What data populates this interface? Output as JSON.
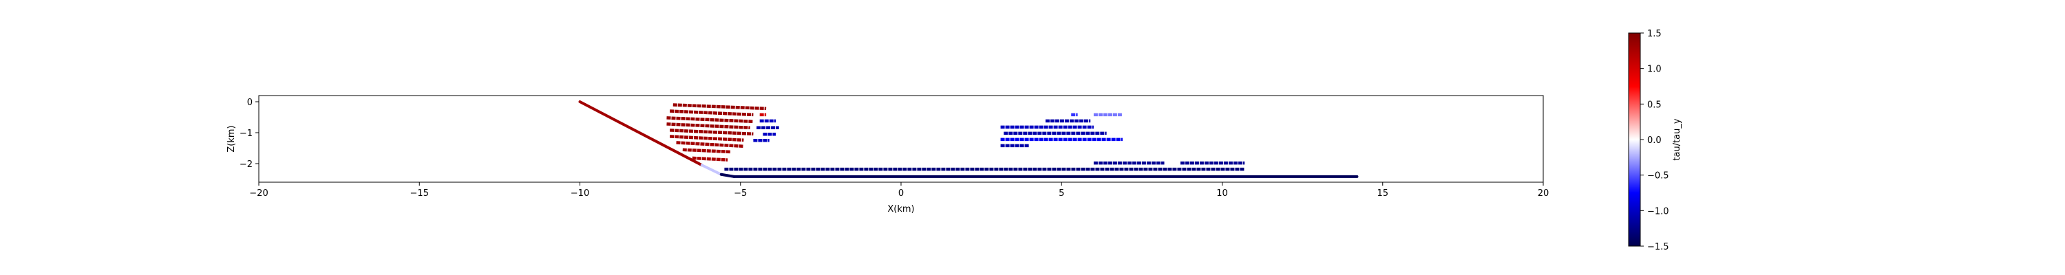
{
  "chart_data": {
    "type": "scatter",
    "xlabel": "X(km)",
    "ylabel": "Z(km)",
    "xlim": [
      -20,
      20
    ],
    "ylim": [
      -2.6,
      0.2
    ],
    "xticks": [
      -20,
      -15,
      -10,
      -5,
      0,
      5,
      10,
      15,
      20
    ],
    "xtick_labels": [
      "−20",
      "−15",
      "−10",
      "−5",
      "0",
      "5",
      "10",
      "15",
      "20"
    ],
    "yticks": [
      0,
      -1,
      -2
    ],
    "ytick_labels": [
      "0",
      "−1",
      "−2"
    ],
    "grid": false,
    "colorbar": {
      "label": "tau/tau_y",
      "range": [
        -1.5,
        1.5
      ],
      "colormap": "seismic",
      "ticks": [
        1.5,
        1.0,
        0.5,
        0.0,
        -0.5,
        -1.0,
        -1.5
      ],
      "tick_labels": [
        "1.5",
        "1.0",
        "0.5",
        "0.0",
        "−0.5",
        "−1.0",
        "−1.5"
      ]
    },
    "series": [
      {
        "kind": "fault",
        "x": [
          -10,
          -6.2,
          -5.6,
          -5.2,
          14.2
        ],
        "y": [
          0,
          -2.05,
          -2.35,
          -2.42,
          -2.42
        ],
        "stress": 1.3,
        "stress_end": -1.45
      },
      {
        "x": [
          -7.1,
          -4.2
        ],
        "y": [
          -0.1,
          -0.22
        ],
        "stress": 1.35
      },
      {
        "x": [
          -7.2,
          -4.6
        ],
        "y": [
          -0.3,
          -0.42
        ],
        "stress": 1.35
      },
      {
        "x": [
          -7.3,
          -4.6
        ],
        "y": [
          -0.52,
          -0.64
        ],
        "stress": 1.35
      },
      {
        "x": [
          -7.3,
          -4.7
        ],
        "y": [
          -0.72,
          -0.84
        ],
        "stress": 1.35
      },
      {
        "x": [
          -7.2,
          -4.6
        ],
        "y": [
          -0.92,
          -1.04
        ],
        "stress": 1.35
      },
      {
        "x": [
          -7.2,
          -4.9
        ],
        "y": [
          -1.12,
          -1.24
        ],
        "stress": 1.3
      },
      {
        "x": [
          -7.0,
          -4.9
        ],
        "y": [
          -1.32,
          -1.44
        ],
        "stress": 1.3
      },
      {
        "x": [
          -6.8,
          -5.3
        ],
        "y": [
          -1.55,
          -1.62
        ],
        "stress": 1.3
      },
      {
        "x": [
          -6.5,
          -5.4
        ],
        "y": [
          -1.82,
          -1.88
        ],
        "stress": 1.25
      },
      {
        "x": [
          -4.4,
          -4.2
        ],
        "y": [
          -0.42,
          -0.42
        ],
        "stress": 1.0
      },
      {
        "x": [
          -4.4,
          -3.9
        ],
        "y": [
          -0.62,
          -0.62
        ],
        "stress": -1.0
      },
      {
        "x": [
          -4.5,
          -3.8
        ],
        "y": [
          -0.84,
          -0.84
        ],
        "stress": -1.1
      },
      {
        "x": [
          -4.3,
          -3.9
        ],
        "y": [
          -1.05,
          -1.05
        ],
        "stress": -1.0
      },
      {
        "x": [
          -4.6,
          -4.1
        ],
        "y": [
          -1.25,
          -1.25
        ],
        "stress": -1.0
      },
      {
        "x": [
          5.3,
          5.5
        ],
        "y": [
          -0.42,
          -0.42
        ],
        "stress": -0.6
      },
      {
        "x": [
          6.0,
          6.9
        ],
        "y": [
          -0.42,
          -0.42
        ],
        "stress": -0.4
      },
      {
        "x": [
          4.5,
          5.9
        ],
        "y": [
          -0.62,
          -0.62
        ],
        "stress": -1.1
      },
      {
        "x": [
          3.1,
          6.0
        ],
        "y": [
          -0.82,
          -0.82
        ],
        "stress": -1.0
      },
      {
        "x": [
          3.2,
          6.4
        ],
        "y": [
          -1.02,
          -1.02
        ],
        "stress": -1.1
      },
      {
        "x": [
          3.1,
          6.9
        ],
        "y": [
          -1.22,
          -1.22
        ],
        "stress": -0.8
      },
      {
        "x": [
          3.1,
          4.0
        ],
        "y": [
          -1.42,
          -1.42
        ],
        "stress": -1.1
      },
      {
        "x": [
          6.0,
          8.2
        ],
        "y": [
          -1.98,
          -1.98
        ],
        "stress": -1.2
      },
      {
        "x": [
          8.7,
          10.7
        ],
        "y": [
          -1.98,
          -1.98
        ],
        "stress": -1.2
      },
      {
        "x": [
          -5.5,
          10.7
        ],
        "y": [
          -2.18,
          -2.18
        ],
        "stress": -1.3
      }
    ]
  }
}
